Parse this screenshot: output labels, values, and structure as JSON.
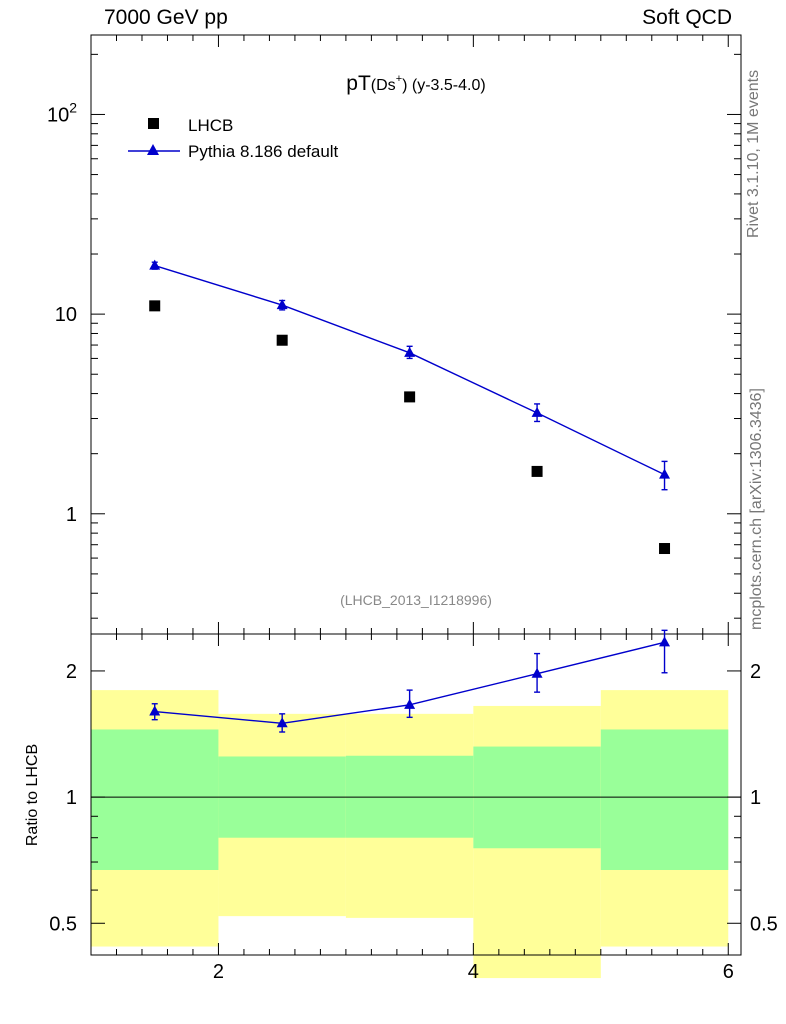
{
  "header": {
    "left": "7000 GeV pp",
    "right": "Soft QCD"
  },
  "side_labels": {
    "top": "Rivet 3.1.10,  1M events",
    "bottom": "mcplots.cern.ch [arXiv:1306.3436]"
  },
  "colors": {
    "mc": "#0000cc",
    "data": "#000000",
    "band_outer": "#ffff99",
    "band_inner": "#99ff99",
    "watermark": "#888888"
  },
  "chart_data": [
    {
      "type": "scatter",
      "panel": "main",
      "title": {
        "pre": "pT",
        "sub": "(Ds",
        "sup": "+",
        "post": ") (y-3.5-4.0)"
      },
      "y_scale": "log",
      "ylim": [
        0.25,
        250
      ],
      "xlim": [
        1,
        6.1
      ],
      "y_ticks": [
        {
          "value": 1,
          "label": "1"
        },
        {
          "value": 10,
          "label": "10"
        },
        {
          "value": 100,
          "label_base": "10",
          "label_exp": "2"
        }
      ],
      "watermark": "(LHCB_2013_I1218996)",
      "legend": {
        "position": "top-left",
        "data_label": "LHCB",
        "mc_label": "Pythia 8.186 default"
      },
      "series": [
        {
          "name": "LHCB",
          "marker": "square",
          "x": [
            1.5,
            2.5,
            3.5,
            4.5,
            5.5
          ],
          "y": [
            11.0,
            7.4,
            3.85,
            1.63,
            0.67
          ]
        },
        {
          "name": "Pythia 8.186 default",
          "marker": "triangle",
          "line": true,
          "x": [
            1.5,
            2.5,
            3.5,
            4.5,
            5.5
          ],
          "y": [
            17.5,
            11.1,
            6.4,
            3.2,
            1.57
          ],
          "err_low": [
            16.8,
            10.5,
            6.0,
            2.9,
            1.32
          ],
          "err_high": [
            18.2,
            11.7,
            6.9,
            3.55,
            1.83
          ]
        }
      ]
    },
    {
      "type": "line",
      "panel": "ratio",
      "ylabel": "Ratio to LHCB",
      "y_scale": "log",
      "ylim": [
        0.42,
        2.45
      ],
      "xlim": [
        1,
        6.1
      ],
      "x_ticks": [
        2,
        4,
        6
      ],
      "y_ticks": [
        {
          "value": 0.5,
          "label": "0.5"
        },
        {
          "value": 1,
          "label": "1"
        },
        {
          "value": 2,
          "label": "2"
        }
      ],
      "bands": [
        {
          "x0": 1,
          "x1": 2,
          "outer": [
            0.44,
            1.8
          ],
          "inner": [
            0.67,
            1.45
          ]
        },
        {
          "x0": 2,
          "x1": 3,
          "outer": [
            0.52,
            1.58
          ],
          "inner": [
            0.8,
            1.25
          ]
        },
        {
          "x0": 3,
          "x1": 4,
          "outer": [
            0.515,
            1.58
          ],
          "inner": [
            0.8,
            1.255
          ]
        },
        {
          "x0": 4,
          "x1": 5,
          "outer": [
            0.37,
            1.65
          ],
          "inner": [
            0.755,
            1.32
          ]
        },
        {
          "x0": 5,
          "x1": 6,
          "outer": [
            0.44,
            1.8
          ],
          "inner": [
            0.67,
            1.45
          ]
        }
      ],
      "series": [
        {
          "name": "Pythia 8.186 default",
          "x": [
            1.5,
            2.5,
            3.5,
            4.5,
            5.5
          ],
          "y": [
            1.6,
            1.5,
            1.66,
            1.97,
            2.34
          ],
          "err_low": [
            1.53,
            1.43,
            1.55,
            1.78,
            1.98
          ],
          "err_high": [
            1.67,
            1.58,
            1.8,
            2.2,
            2.5
          ]
        }
      ]
    }
  ]
}
